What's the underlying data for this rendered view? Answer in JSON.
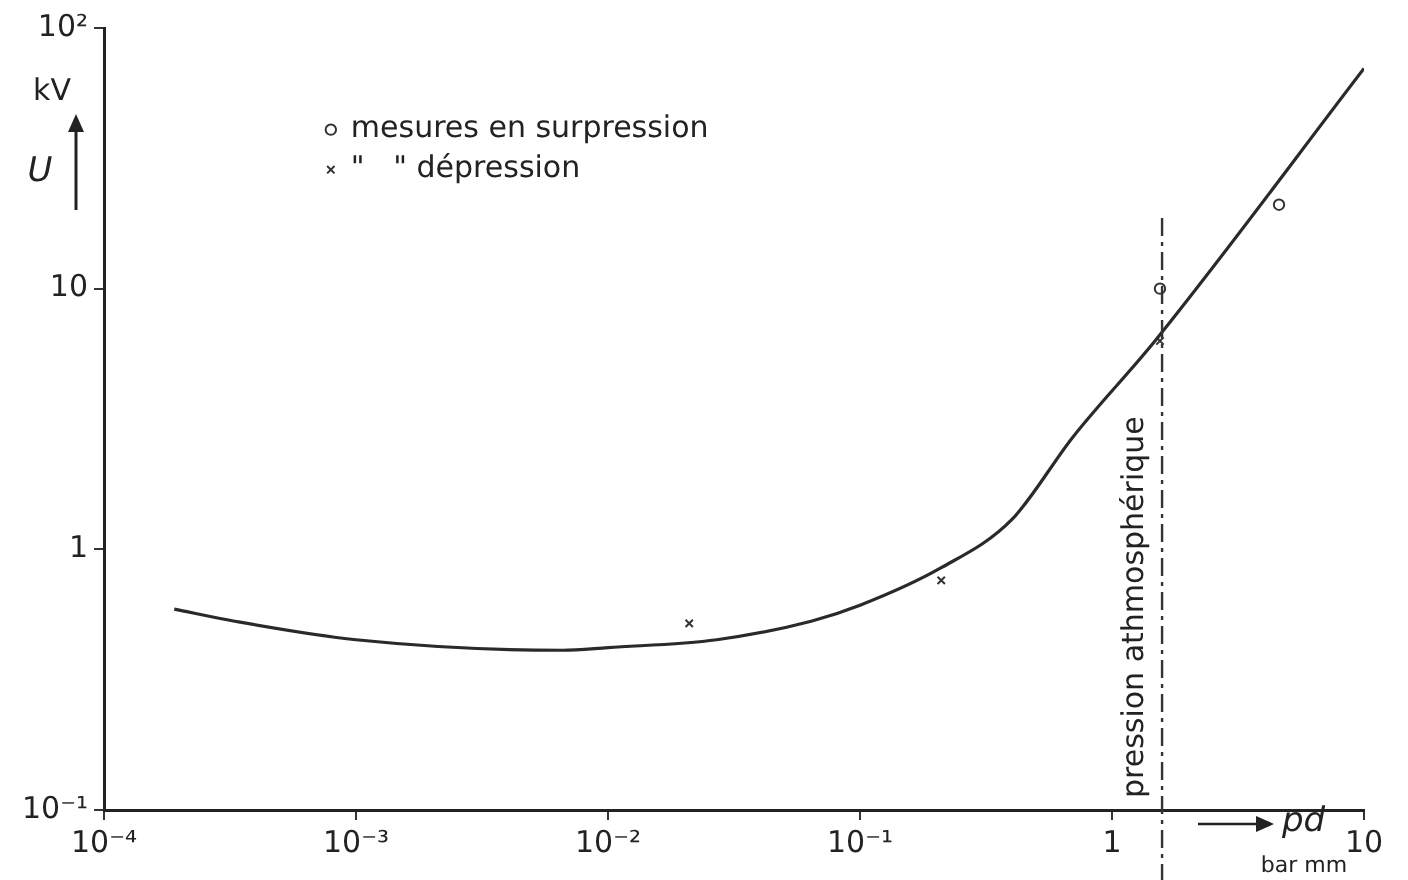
{
  "chart_data": {
    "type": "line",
    "log": "xy",
    "grid": false,
    "legend": "top left",
    "xlabel": "pd",
    "ylabel": "U",
    "annotations": [
      "kV",
      "bar mm"
    ],
    "xlim": [
      0.0001,
      10
    ],
    "ylim": [
      0.1,
      100
    ],
    "xticks": [
      {
        "value": 0.0001,
        "label": "10⁻⁴"
      },
      {
        "value": 0.001,
        "label": "10⁻³"
      },
      {
        "value": 0.01,
        "label": "10⁻²"
      },
      {
        "value": 0.1,
        "label": "10⁻¹"
      },
      1,
      10
    ],
    "yticks": [
      {
        "value": 0.1,
        "label": "10⁻¹"
      },
      1,
      10,
      {
        "value": 100,
        "label": "10²"
      }
    ],
    "ref_lines": [
      {
        "axis": "x",
        "value": 1.58,
        "label": "pression athmosphérique",
        "line_style": "dashed",
        "color": "#333333"
      }
    ],
    "series": [
      {
        "type": "line",
        "color": "#2a2a2a",
        "marker": "none",
        "x": [
          0.00019,
          0.00033,
          0.001,
          0.0066,
          0.01,
          0.027,
          0.064,
          0.1,
          0.21,
          0.4,
          0.7,
          1.5,
          10
        ],
        "values": [
          0.59,
          0.53,
          0.45,
          0.41,
          0.42,
          0.45,
          0.53,
          0.61,
          0.85,
          1.3,
          2.7,
          6.4,
          70
        ]
      },
      {
        "type": "scatter",
        "name": "mesures en surpression",
        "color": "#333333",
        "marker": "circle",
        "x": [
          1.55,
          4.6
        ],
        "values": [
          10,
          21
        ]
      },
      {
        "type": "scatter",
        "name": "\"   \" dépression",
        "color": "#333333",
        "marker": "cross",
        "x": [
          0.021,
          0.21,
          1.55
        ],
        "values": [
          0.52,
          0.76,
          6.3
        ]
      }
    ]
  }
}
